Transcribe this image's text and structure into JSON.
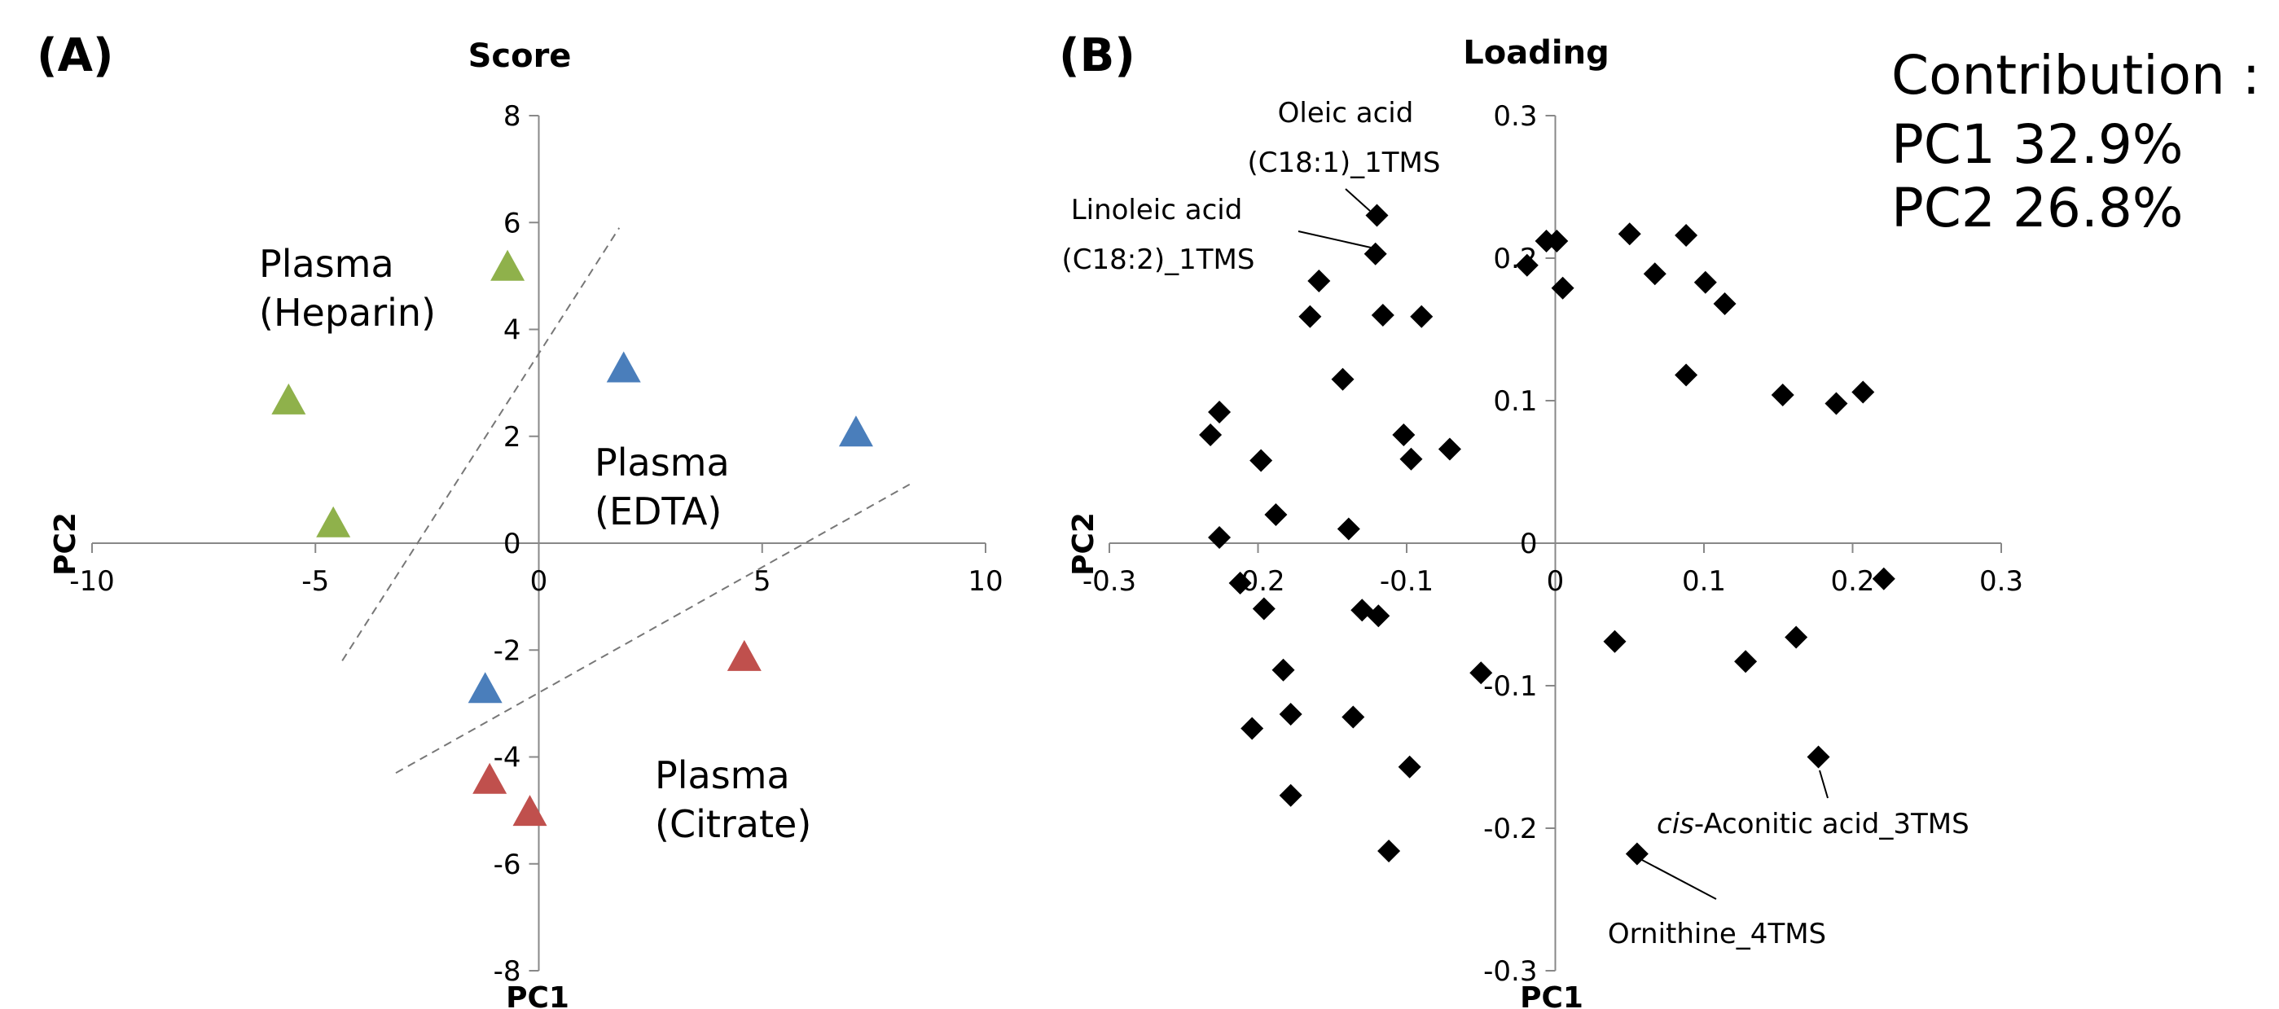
{
  "chart_data": [
    {
      "panel_label": "(A)",
      "type": "scatter",
      "title": "Score",
      "xlabel": "PC1",
      "ylabel": "PC2",
      "xlim": [
        -10,
        10
      ],
      "ylim": [
        -8,
        8
      ],
      "xticks": [
        "-10",
        "-5",
        "0",
        "5",
        "10"
      ],
      "yticks": [
        "-8",
        "-6",
        "-4",
        "-2",
        "0",
        "2",
        "4",
        "6",
        "8"
      ],
      "marker": "triangle",
      "series": [
        {
          "label": "Plasma\n(Heparin)",
          "color": "#8FB14B",
          "points": [
            [
              -5.6,
              2.7
            ],
            [
              -4.6,
              0.4
            ],
            [
              -0.7,
              5.2
            ]
          ]
        },
        {
          "label": "Plasma\n(EDTA)",
          "color": "#4A7EBB",
          "points": [
            [
              1.9,
              3.3
            ],
            [
              7.1,
              2.1
            ],
            [
              -1.2,
              -2.7
            ]
          ]
        },
        {
          "label": "Plasma\n(Citrate)",
          "color": "#C0504D",
          "points": [
            [
              4.6,
              -2.1
            ],
            [
              -1.1,
              -4.4
            ],
            [
              -0.2,
              -5.0
            ]
          ]
        }
      ],
      "group_labels": [
        "Plasma",
        "(Heparin)",
        "Plasma",
        "(EDTA)",
        "Plasma",
        "(Citrate)"
      ],
      "separators": [
        {
          "from": [
            -4.4,
            -2.2
          ],
          "to": [
            1.8,
            5.9
          ]
        },
        {
          "from": [
            -3.2,
            -4.3
          ],
          "to": [
            8.3,
            1.1
          ]
        }
      ]
    },
    {
      "panel_label": "(B)",
      "type": "scatter",
      "title": "Loading",
      "xlabel": "PC1",
      "ylabel": "PC2",
      "xlim": [
        -0.3,
        0.3
      ],
      "ylim": [
        -0.3,
        0.3
      ],
      "xticks": [
        "-0.3",
        "-0.2",
        "-0.1",
        "0",
        "0.1",
        "0.2",
        "0.3"
      ],
      "yticks": [
        "-0.3",
        "-0.2",
        "-0.1",
        "0",
        "0.1",
        "0.2",
        "0.3"
      ],
      "marker": "diamond",
      "points": [
        [
          -0.12,
          0.23
        ],
        [
          -0.121,
          0.203
        ],
        [
          -0.159,
          0.184
        ],
        [
          -0.165,
          0.159
        ],
        [
          -0.116,
          0.16
        ],
        [
          -0.09,
          0.159
        ],
        [
          -0.143,
          0.115
        ],
        [
          -0.226,
          0.092
        ],
        [
          -0.232,
          0.076
        ],
        [
          -0.198,
          0.058
        ],
        [
          -0.102,
          0.076
        ],
        [
          -0.097,
          0.059
        ],
        [
          -0.071,
          0.066
        ],
        [
          -0.188,
          0.02
        ],
        [
          -0.139,
          0.01
        ],
        [
          -0.226,
          0.004
        ],
        [
          -0.212,
          -0.028
        ],
        [
          -0.196,
          -0.046
        ],
        [
          -0.13,
          -0.047
        ],
        [
          -0.119,
          -0.051
        ],
        [
          -0.183,
          -0.089
        ],
        [
          -0.05,
          -0.091
        ],
        [
          -0.178,
          -0.12
        ],
        [
          -0.136,
          -0.122
        ],
        [
          -0.204,
          -0.13
        ],
        [
          -0.098,
          -0.157
        ],
        [
          -0.178,
          -0.177
        ],
        [
          -0.112,
          -0.216
        ],
        [
          -0.019,
          0.195
        ],
        [
          -0.006,
          0.212
        ],
        [
          0.001,
          0.212
        ],
        [
          0.005,
          0.179
        ],
        [
          0.05,
          0.217
        ],
        [
          0.067,
          0.189
        ],
        [
          0.088,
          0.216
        ],
        [
          0.101,
          0.183
        ],
        [
          0.114,
          0.168
        ],
        [
          0.088,
          0.118
        ],
        [
          0.153,
          0.104
        ],
        [
          0.189,
          0.098
        ],
        [
          0.207,
          0.106
        ],
        [
          0.221,
          -0.025
        ],
        [
          0.04,
          -0.069
        ],
        [
          0.162,
          -0.066
        ],
        [
          0.128,
          -0.083
        ],
        [
          0.177,
          -0.15
        ],
        [
          0.055,
          -0.218
        ]
      ],
      "annotations": [
        {
          "text_lines": [
            "Oleic acid",
            "(C18:1)_1TMS"
          ],
          "point": [
            -0.12,
            0.23
          ]
        },
        {
          "text_lines": [
            "Linoleic acid",
            "(C18:2)_1TMS"
          ],
          "point": [
            -0.121,
            0.203
          ]
        },
        {
          "text_lines": [
            "cis-Aconitic acid_3TMS"
          ],
          "italic_prefix": "cis",
          "point": [
            0.177,
            -0.15
          ]
        },
        {
          "text_lines": [
            "Ornithine_4TMS"
          ],
          "point": [
            0.055,
            -0.218
          ]
        }
      ],
      "contribution": [
        "Contribution :",
        "PC1 32.9%",
        "PC2 26.8%"
      ]
    }
  ]
}
